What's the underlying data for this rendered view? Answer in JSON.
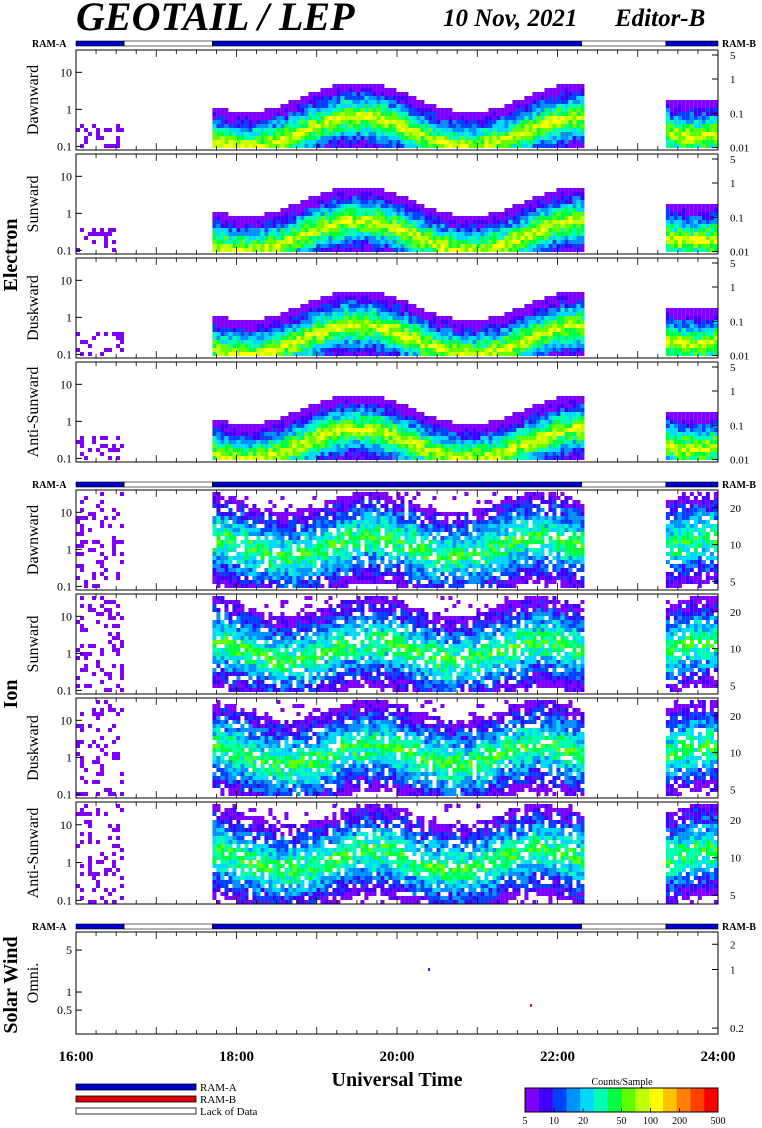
{
  "title": "GEOTAIL / LEP",
  "date": "10 Nov, 2021",
  "editor": "Editor-B",
  "ram_a_label": "RAM-A",
  "ram_b_label": "RAM-B",
  "x_title": "Universal Time",
  "colorbar": {
    "title": "Counts/Sample",
    "ticks": [
      "5",
      "10",
      "20",
      "50",
      "100",
      "200",
      "500"
    ],
    "colors": [
      "#7f00ff",
      "#4000ff",
      "#0040ff",
      "#0090ff",
      "#00d8ff",
      "#00ffb0",
      "#00ff40",
      "#60ff00",
      "#c0ff00",
      "#ffff00",
      "#ffc000",
      "#ff8000",
      "#ff4000",
      "#ff0000"
    ]
  },
  "legend": [
    {
      "label": "RAM-A",
      "color": "#0000cc"
    },
    {
      "label": "RAM-B",
      "color": "#dd0000"
    },
    {
      "label": "Lack of Data",
      "color": "#ffffff"
    }
  ],
  "chart_data": {
    "type": "heatmap",
    "x_range_hours": [
      16,
      24
    ],
    "x_ticks": [
      "16:00",
      "18:00",
      "20:00",
      "22:00",
      "24:00"
    ],
    "data_availability": [
      {
        "state": "RAM-A",
        "start": 16.0,
        "end": 16.6
      },
      {
        "state": "Lack of Data",
        "start": 16.6,
        "end": 17.7
      },
      {
        "state": "RAM-A",
        "start": 17.7,
        "end": 22.3
      },
      {
        "state": "Lack of Data",
        "start": 22.3,
        "end": 23.35
      },
      {
        "state": "RAM-A",
        "start": 23.35,
        "end": 24.0
      }
    ],
    "groups": [
      {
        "name": "Electron",
        "panels": [
          {
            "name": "Dawnward",
            "left_ticks": [
              "10",
              "1",
              "0.1"
            ],
            "right_ticks": [
              "5",
              "1",
              "0.1",
              "0.01"
            ]
          },
          {
            "name": "Sunward",
            "left_ticks": [
              "10",
              "1",
              "0.1"
            ],
            "right_ticks": [
              "5",
              "1",
              "0.1",
              "0.01"
            ]
          },
          {
            "name": "Duskward",
            "left_ticks": [
              "10",
              "1",
              "0.1"
            ],
            "right_ticks": [
              "5",
              "1",
              "0.1",
              "0.01"
            ]
          },
          {
            "name": "Anti-Sunward",
            "left_ticks": [
              "10",
              "1",
              "0.1"
            ],
            "right_ticks": [
              "5",
              "1",
              "0.1",
              "0.01"
            ]
          }
        ]
      },
      {
        "name": "Ion",
        "panels": [
          {
            "name": "Dawnward",
            "left_ticks": [
              "10",
              "1",
              "0.1"
            ],
            "right_ticks": [
              "20",
              "10",
              "5"
            ]
          },
          {
            "name": "Sunward",
            "left_ticks": [
              "10",
              "1",
              "0.1"
            ],
            "right_ticks": [
              "20",
              "10",
              "5"
            ]
          },
          {
            "name": "Duskward",
            "left_ticks": [
              "10",
              "1",
              "0.1"
            ],
            "right_ticks": [
              "20",
              "10",
              "5"
            ]
          },
          {
            "name": "Anti-Sunward",
            "left_ticks": [
              "10",
              "1",
              "0.1"
            ],
            "right_ticks": [
              "20",
              "10",
              "5"
            ]
          }
        ]
      },
      {
        "name": "Solar Wind",
        "panels": [
          {
            "name": "Omni.",
            "left_ticks": [
              "5",
              "1",
              "0.5"
            ],
            "right_ticks": [
              "2",
              "1",
              "0.2"
            ]
          }
        ]
      }
    ]
  }
}
